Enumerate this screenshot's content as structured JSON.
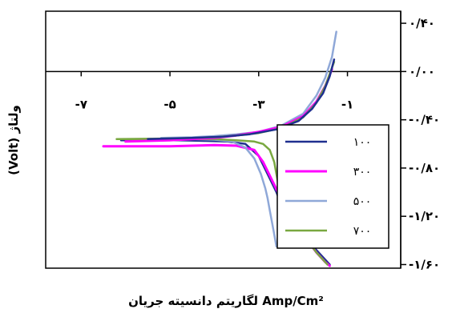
{
  "chart_data": {
    "type": "line",
    "title": "",
    "xlabel": "Amp/Cm² لگاریتم دانسیته جریان",
    "ylabel": "ولتاژ (Volt)",
    "xlim": [
      -7.8,
      0.2
    ],
    "ylim": [
      -1.63,
      0.5
    ],
    "x_ticks": [
      {
        "value": -7,
        "label": "-۷"
      },
      {
        "value": -5,
        "label": "-۵"
      },
      {
        "value": -3,
        "label": "-۳"
      },
      {
        "value": -1,
        "label": "-۱"
      }
    ],
    "y_ticks": [
      {
        "value": 0.4,
        "label": "۰/۴۰"
      },
      {
        "value": 0.0,
        "label": "۰/۰۰"
      },
      {
        "value": -0.4,
        "label": "-۰/۴۰"
      },
      {
        "value": -0.8,
        "label": "-۰/۸۰"
      },
      {
        "value": -1.2,
        "label": "-۱/۲۰"
      },
      {
        "value": -1.6,
        "label": "-۱/۶۰"
      }
    ],
    "grid": false,
    "legend_position": "right",
    "series": [
      {
        "name": "۱۰۰",
        "color": "#1f2f8f",
        "x": [
          -6.1,
          -5.5,
          -4.8,
          -4.2,
          -3.7,
          -3.3,
          -3.0,
          -2.8,
          -2.6,
          -2.5,
          -2.4,
          -2.2,
          -1.9,
          -1.6,
          -1.4
        ],
        "y": [
          -0.57,
          -0.57,
          -0.57,
          -0.575,
          -0.58,
          -0.6,
          -0.7,
          -0.85,
          -1.0,
          -1.1,
          -1.18,
          -1.28,
          -1.4,
          -1.52,
          -1.6
        ]
      },
      {
        "name": "۳۰۰",
        "color": "#ff00ff",
        "x": [
          -6.5,
          -6.0,
          -5.5,
          -5.0,
          -4.5,
          -4.0,
          -3.5,
          -3.1,
          -2.9,
          -2.7,
          -2.5,
          -2.3,
          -2.0,
          -1.7,
          -1.5,
          -1.4
        ],
        "y": [
          -0.62,
          -0.62,
          -0.62,
          -0.62,
          -0.615,
          -0.61,
          -0.615,
          -0.65,
          -0.75,
          -0.9,
          -1.05,
          -1.2,
          -1.35,
          -1.5,
          -1.58,
          -1.61
        ]
      },
      {
        "name": "۵۰۰",
        "color": "#8fa8d8",
        "x": [
          -6.1,
          -5.5,
          -5.0,
          -4.5,
          -4.0,
          -3.6,
          -3.3,
          -3.1,
          -2.95,
          -2.85,
          -2.8,
          -2.75,
          -2.7,
          -2.65,
          -2.6
        ],
        "y": [
          -0.56,
          -0.56,
          -0.56,
          -0.56,
          -0.565,
          -0.58,
          -0.63,
          -0.72,
          -0.85,
          -0.97,
          -1.05,
          -1.15,
          -1.25,
          -1.35,
          -1.45
        ]
      },
      {
        "name": "۷۰۰",
        "color": "#79a840",
        "x": [
          -6.2,
          -5.5,
          -5.0,
          -4.5,
          -4.0,
          -3.5,
          -3.1,
          -2.9,
          -2.75,
          -2.65,
          -2.6,
          -2.55,
          -2.45,
          -2.3,
          -2.1,
          -1.9,
          -1.7,
          -1.5,
          -1.45
        ],
        "y": [
          -0.56,
          -0.56,
          -0.56,
          -0.56,
          -0.56,
          -0.57,
          -0.58,
          -0.6,
          -0.65,
          -0.75,
          -0.85,
          -0.95,
          -1.05,
          -1.15,
          -1.27,
          -1.4,
          -1.5,
          -1.58,
          -1.6
        ]
      },
      {
        "name": "",
        "color": "#8fa8d8",
        "x": [
          -5.2,
          -4.5,
          -4.0,
          -3.5,
          -3.0,
          -2.5,
          -2.0,
          -1.7,
          -1.5,
          -1.35,
          -1.25
        ],
        "y": [
          -0.55,
          -0.545,
          -0.535,
          -0.52,
          -0.5,
          -0.45,
          -0.35,
          -0.2,
          -0.05,
          0.12,
          0.33
        ]
      },
      {
        "name": "",
        "color": "#ff00ff",
        "x": [
          -6.0,
          -5.0,
          -4.0,
          -3.5,
          -3.0,
          -2.5,
          -2.0,
          -1.7,
          -1.5,
          -1.35
        ],
        "y": [
          -0.58,
          -0.57,
          -0.55,
          -0.53,
          -0.5,
          -0.46,
          -0.37,
          -0.25,
          -0.12,
          0.02
        ]
      },
      {
        "name": "",
        "color": "#79a840",
        "x": [
          -6.2,
          -5.0,
          -4.0,
          -3.5,
          -3.0,
          -2.5,
          -2.0,
          -1.7,
          -1.5,
          -1.3
        ],
        "y": [
          -0.56,
          -0.555,
          -0.545,
          -0.53,
          -0.51,
          -0.47,
          -0.38,
          -0.26,
          -0.12,
          0.08
        ]
      },
      {
        "name": "",
        "color": "#1f2f8f",
        "x": [
          -5.5,
          -4.5,
          -3.8,
          -3.2,
          -2.6,
          -2.1,
          -1.8,
          -1.55,
          -1.4,
          -1.3
        ],
        "y": [
          -0.56,
          -0.55,
          -0.54,
          -0.52,
          -0.48,
          -0.41,
          -0.31,
          -0.18,
          -0.04,
          0.1
        ]
      }
    ]
  }
}
